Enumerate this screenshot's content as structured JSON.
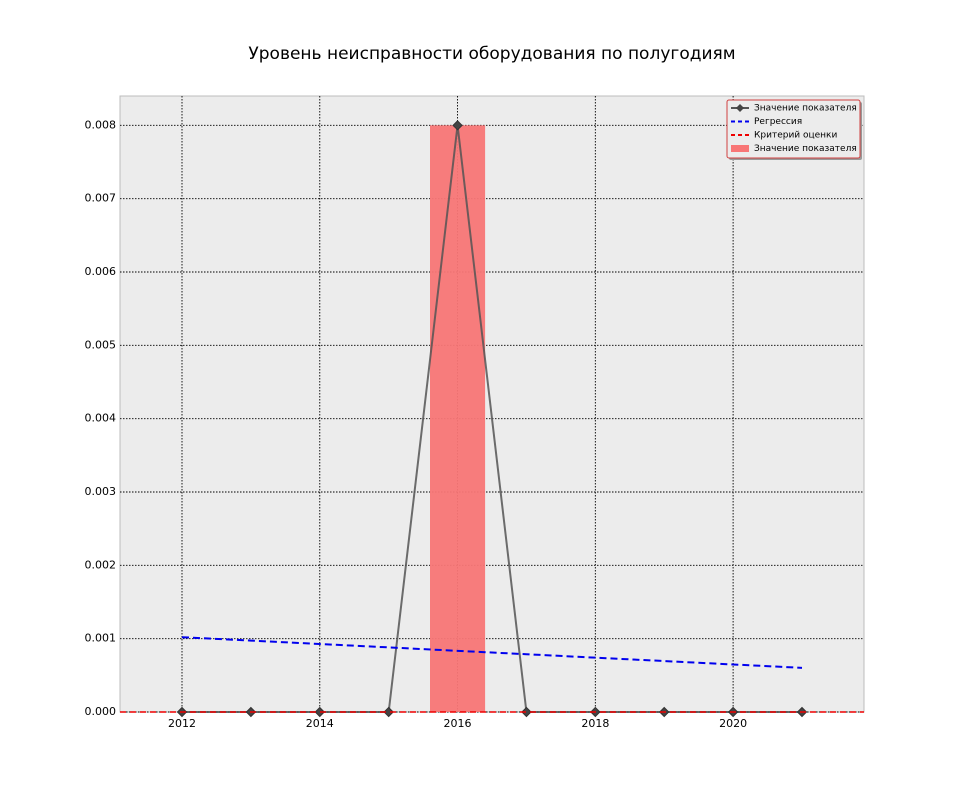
{
  "chart_data": {
    "type": "line",
    "title": "Уровень неисправности оборудования по полугодиям",
    "xlabel": "",
    "ylabel": "",
    "x": [
      2012,
      2013,
      2014,
      2015,
      2016,
      2017,
      2018,
      2019,
      2020,
      2021
    ],
    "xlim": [
      2011.1,
      2021.9
    ],
    "ylim": [
      0,
      0.0084
    ],
    "x_ticks": [
      2012,
      2014,
      2016,
      2018,
      2020
    ],
    "y_ticks": [
      0.0,
      0.001,
      0.002,
      0.003,
      0.004,
      0.005,
      0.006,
      0.007,
      0.008
    ],
    "x_tick_labels": [
      "2012",
      "2014",
      "2016",
      "2018",
      "2020"
    ],
    "y_tick_labels": [
      "0.000",
      "0.001",
      "0.002",
      "0.003",
      "0.004",
      "0.005",
      "0.006",
      "0.007",
      "0.008"
    ],
    "grid": true,
    "legend_position": "top-right",
    "series": [
      {
        "name": "Значение показателя",
        "kind": "line",
        "marker": "diamond",
        "color": "#555555",
        "values": [
          0,
          0,
          0,
          0,
          0.008,
          0,
          0,
          0,
          0,
          0
        ]
      },
      {
        "name": "Регрессия",
        "kind": "dashed-line",
        "color": "#0000ee",
        "values": [
          0.00102,
          0.000974,
          0.000927,
          0.000881,
          0.000834,
          0.000788,
          0.000741,
          0.000695,
          0.000648,
          0.000602
        ]
      },
      {
        "name": "Критерий оценки",
        "kind": "dashed-hline",
        "color": "#ee0000",
        "value": 0
      },
      {
        "name": "Значение показателя",
        "kind": "bar",
        "color": "#f87676",
        "values": [
          0,
          0,
          0,
          0,
          0.008,
          0,
          0,
          0,
          0,
          0
        ]
      }
    ]
  }
}
